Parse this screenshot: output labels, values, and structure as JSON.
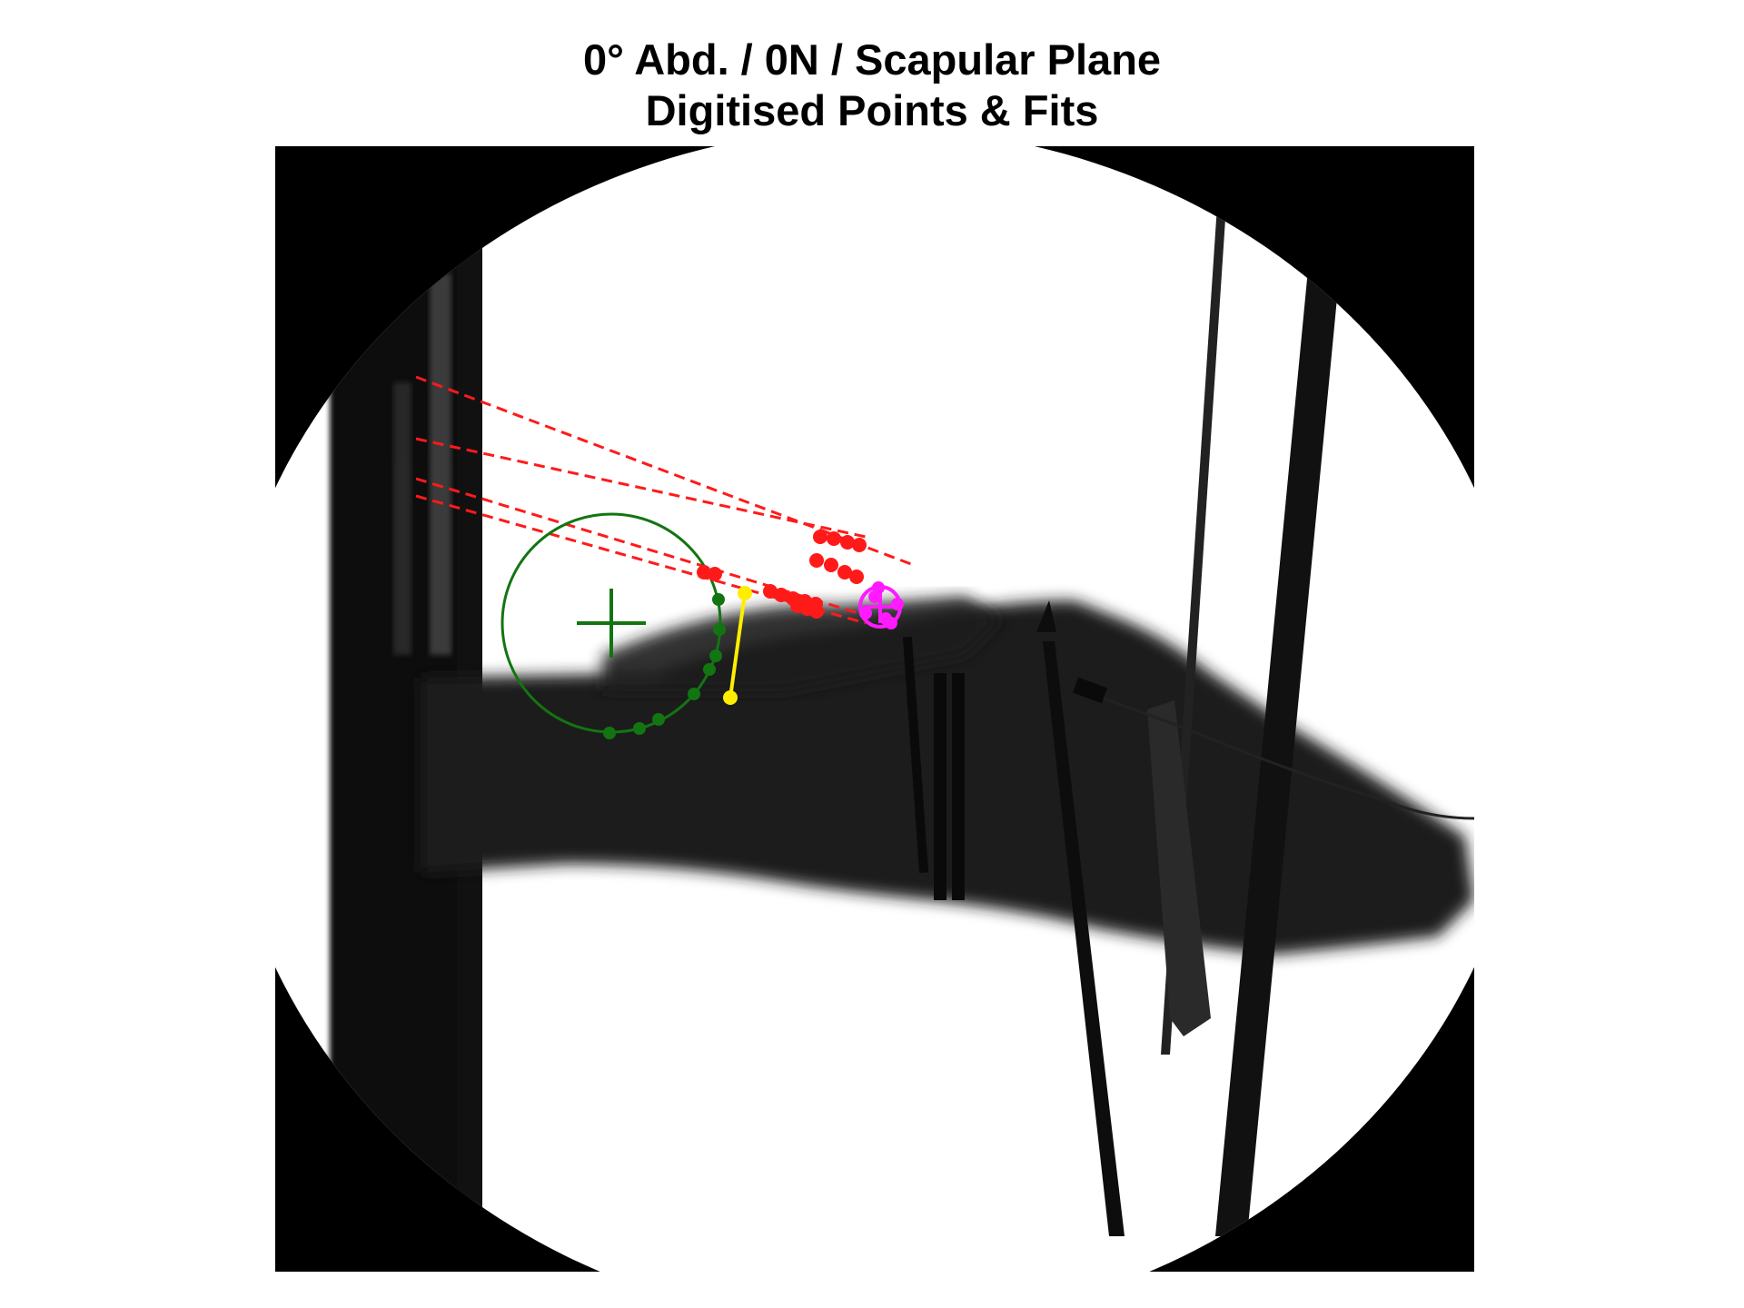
{
  "title": {
    "line1": "0° Abd. / 0N / Scapular Plane",
    "line2": "Digitised Points & Fits"
  },
  "colors": {
    "background_dark": "#000000",
    "field_of_view": "#ffffff",
    "tissue": "#1a1a1a",
    "circle_fit": "#127512",
    "red_points": "#ff1a1a",
    "yellow_segment": "#ffee00",
    "magenta_fit": "#ff1aff"
  },
  "overlays": {
    "circle_fit": {
      "name": "green-circle-fit",
      "point_count": 10
    },
    "red_points": {
      "name": "red-digitised-points",
      "line_count": 4
    },
    "yellow_segment": {
      "name": "yellow-segment",
      "point_count": 2
    },
    "magenta_fit": {
      "name": "magenta-fit",
      "point_count": 6
    }
  }
}
